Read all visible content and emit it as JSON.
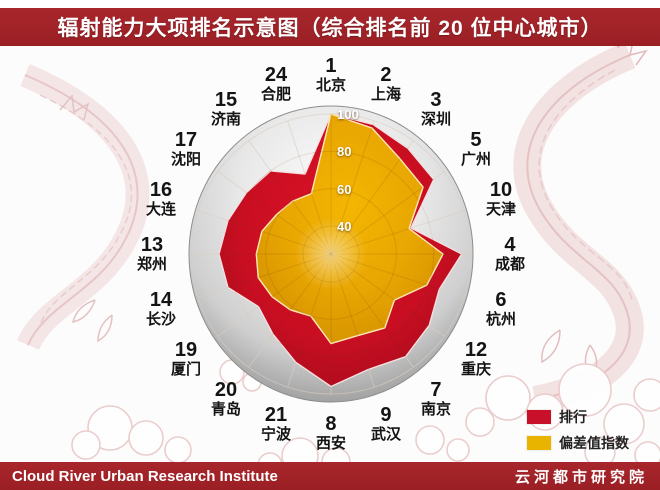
{
  "title_bar": {
    "title": "辐射能力大项排名示意图（综合排名前 20 位中心城市）",
    "bg_color": "#9E2126"
  },
  "footer": {
    "left_text": "Cloud River Urban Research Institute",
    "right_text": "云河都市研究院",
    "bg_color": "#9E2126"
  },
  "legend": {
    "items": [
      {
        "label": "排行",
        "color": "#C9102A"
      },
      {
        "label": "偏差值指数",
        "color": "#E8B400"
      }
    ]
  },
  "chart_data": {
    "type": "radar",
    "title": "辐射能力大项排名示意图（综合排名前 20 位中心城市）",
    "categories": [
      "北京",
      "上海",
      "深圳",
      "广州",
      "天津",
      "成都",
      "杭州",
      "重庆",
      "南京",
      "武汉",
      "西安",
      "宁波",
      "青岛",
      "厦门",
      "长沙",
      "郑州",
      "大连",
      "沈阳",
      "济南",
      "合肥"
    ],
    "category_ranks": [
      1,
      2,
      3,
      5,
      10,
      4,
      6,
      12,
      7,
      9,
      8,
      21,
      20,
      19,
      14,
      13,
      16,
      17,
      15,
      24
    ],
    "series": [
      {
        "name": "排行",
        "color": "#C9102A",
        "values": [
          100,
          98,
          95,
          93,
          70,
          95,
          86,
          90,
          93,
          90,
          96,
          86,
          78,
          73,
          83,
          85,
          83,
          81,
          80,
          70
        ]
      },
      {
        "name": "偏差值指数",
        "color": "#E8B400",
        "values": [
          100,
          96,
          88,
          86,
          69,
          85,
          79,
          67,
          74,
          71,
          73,
          60,
          62,
          64,
          66,
          65,
          64,
          61,
          60,
          59
        ]
      }
    ],
    "raxis": {
      "ticks": [
        40,
        60,
        80,
        100
      ],
      "max": 100,
      "center_value": 25
    },
    "start_angle_deg": 0,
    "direction": "clockwise",
    "legend_position": "bottom-right",
    "style_note": "polar radar drawn over 3D gray sphere, value labels along top vertical axis"
  }
}
